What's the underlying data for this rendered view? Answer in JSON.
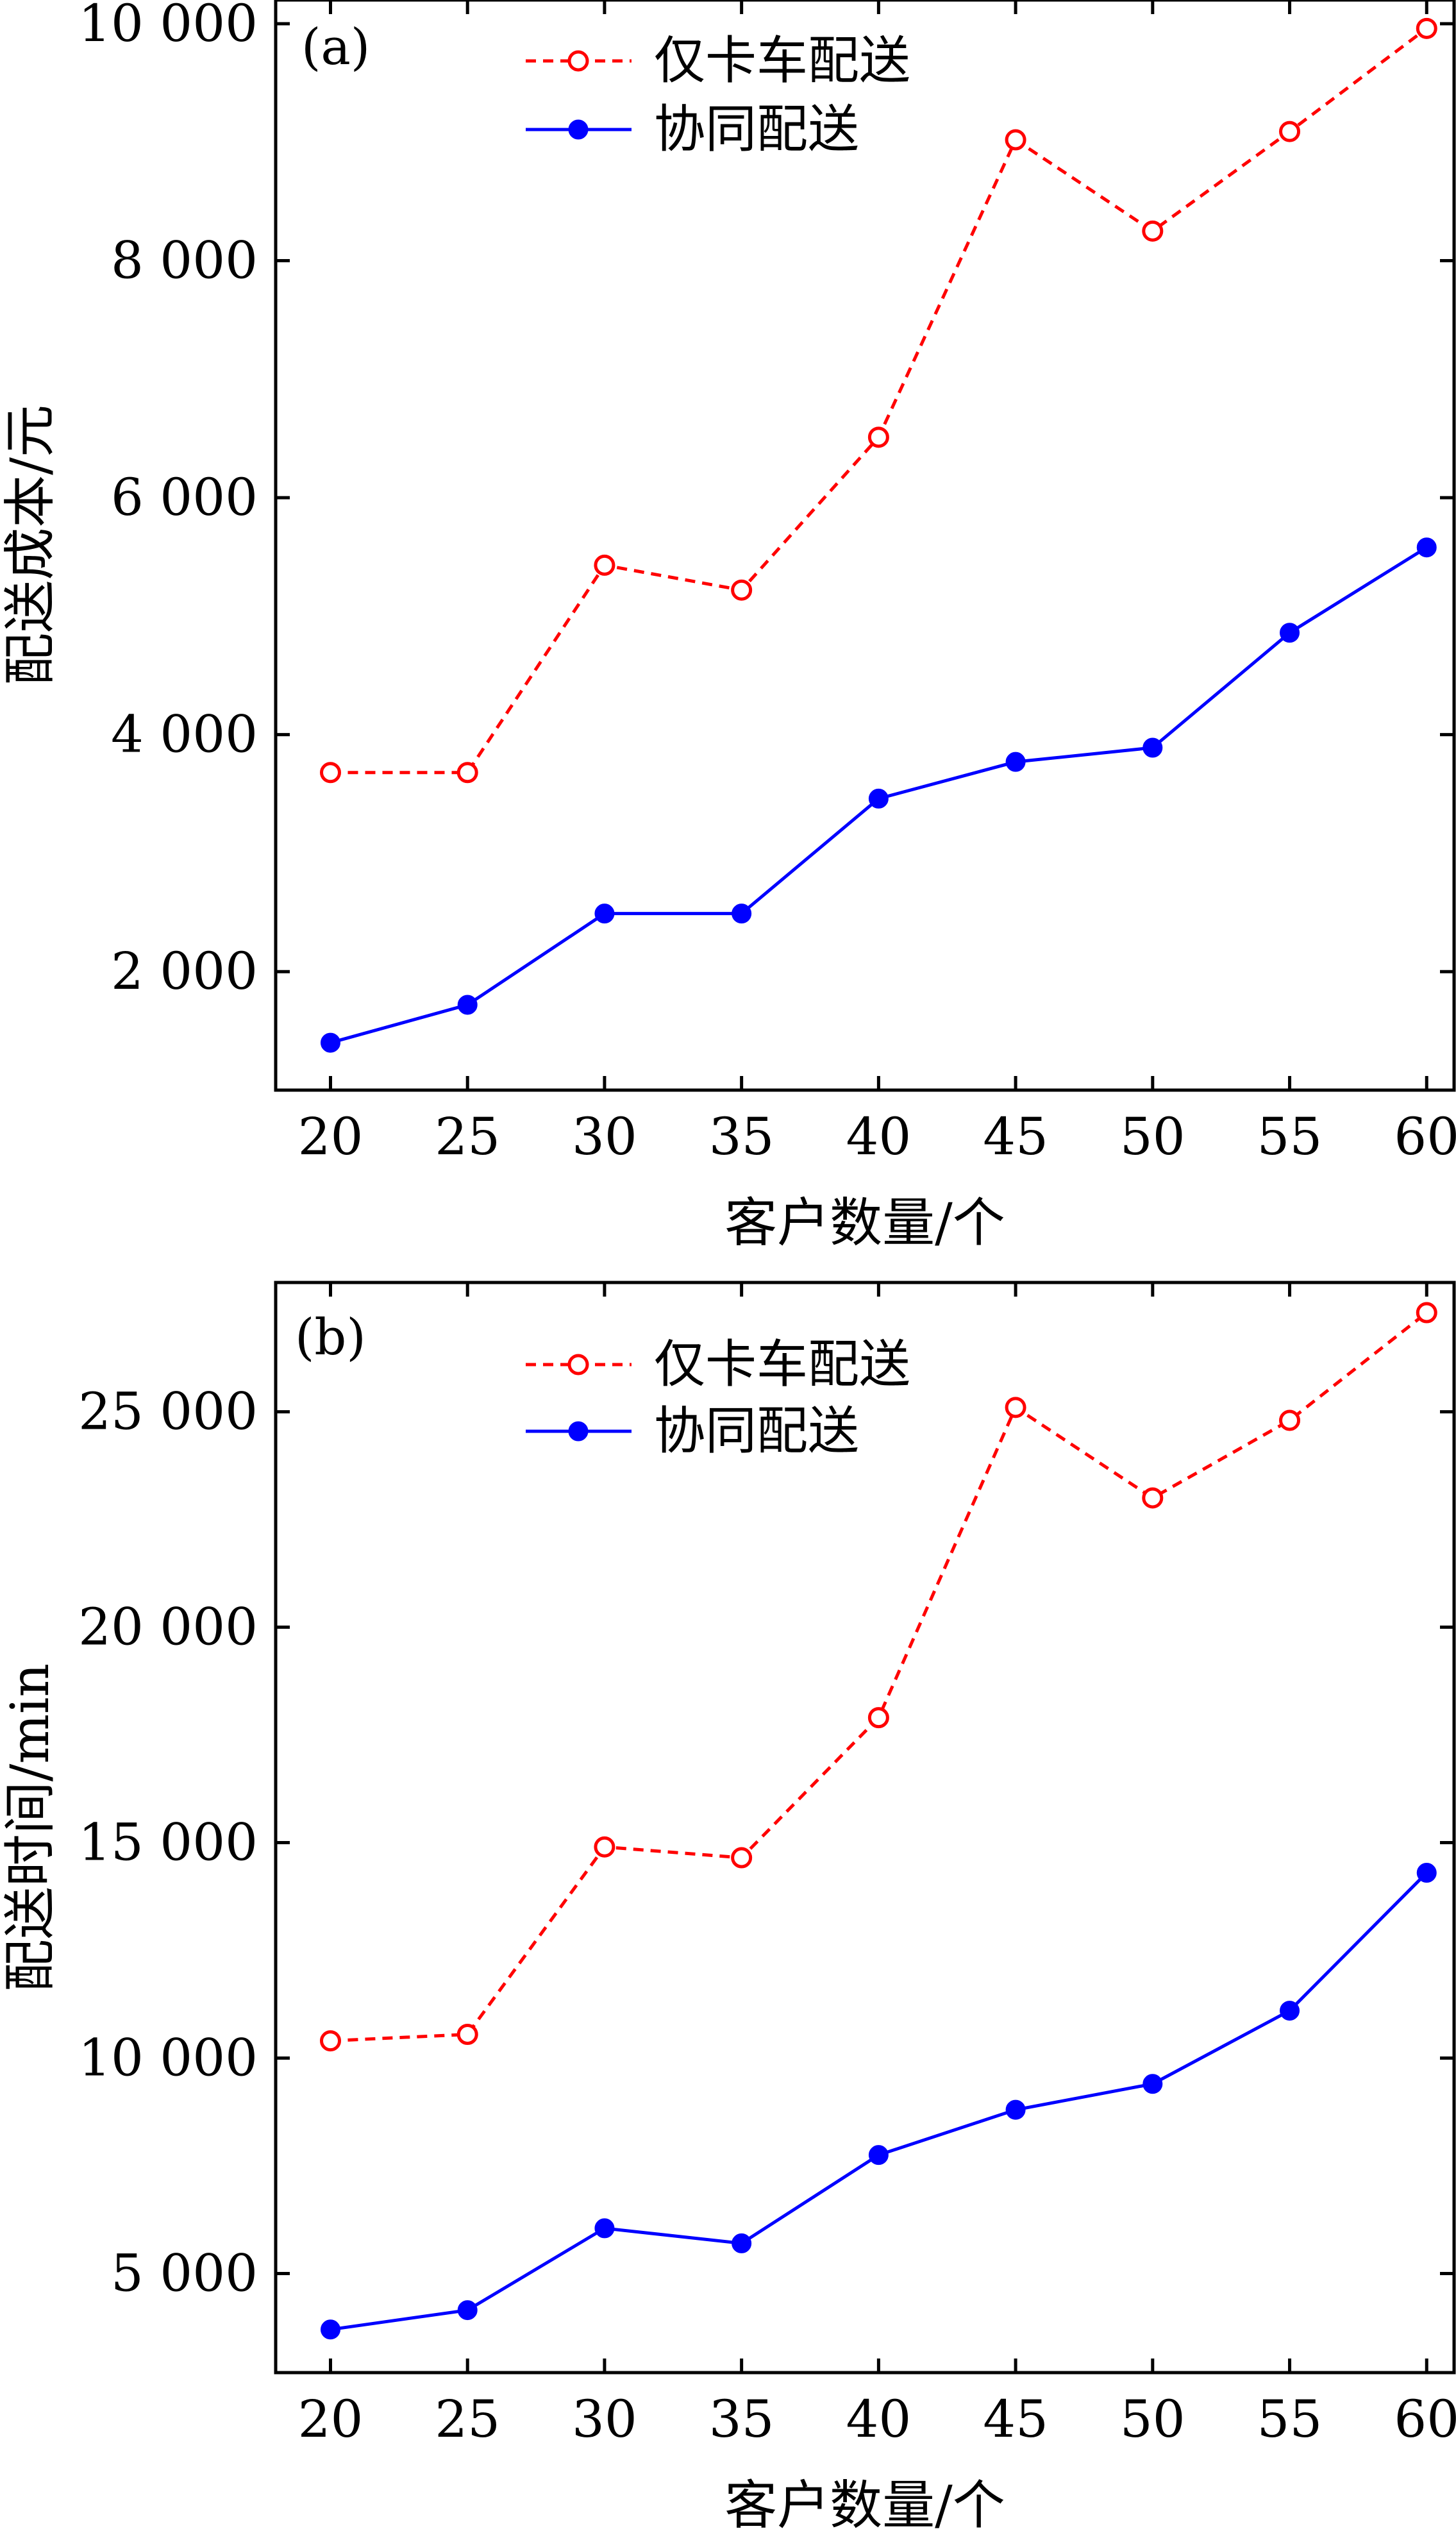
{
  "chart_data": [
    {
      "type": "line",
      "panel_label": "(a)",
      "xlabel": "客户数量/个",
      "ylabel": "配送成本/元",
      "x": [
        20,
        25,
        30,
        35,
        40,
        45,
        50,
        55,
        60
      ],
      "xlim": [
        18,
        61
      ],
      "ylim": [
        1000,
        10200
      ],
      "xticks": [
        20,
        25,
        30,
        35,
        40,
        45,
        50,
        55,
        60
      ],
      "xtick_labels": [
        "20",
        "25",
        "30",
        "35",
        "40",
        "45",
        "50",
        "55",
        "60"
      ],
      "yticks": [
        2000,
        4000,
        6000,
        8000,
        10000
      ],
      "ytick_labels": [
        "2 000",
        "4 000",
        "6 000",
        "8 000",
        "10 000"
      ],
      "legend_position": "top-center",
      "series": [
        {
          "name": "仅卡车配送",
          "color": "#ff0000",
          "line_style": "dashed",
          "marker": "open-circle",
          "values": [
            3680,
            3680,
            5430,
            5220,
            6510,
            9020,
            8250,
            9090,
            9960
          ]
        },
        {
          "name": "协同配送",
          "color": "#0000ff",
          "line_style": "solid",
          "marker": "filled-circle",
          "values": [
            1400,
            1720,
            2490,
            2490,
            3460,
            3770,
            3890,
            4860,
            5580
          ]
        }
      ]
    },
    {
      "type": "line",
      "panel_label": "(b)",
      "xlabel": "客户数量/个",
      "ylabel": "配送时间/min",
      "x": [
        20,
        25,
        30,
        35,
        40,
        45,
        50,
        55,
        60
      ],
      "xlim": [
        18,
        61
      ],
      "ylim": [
        2700,
        28000
      ],
      "xticks": [
        20,
        25,
        30,
        35,
        40,
        45,
        50,
        55,
        60
      ],
      "xtick_labels": [
        "20",
        "25",
        "30",
        "35",
        "40",
        "45",
        "50",
        "55",
        "60"
      ],
      "yticks": [
        5000,
        10000,
        15000,
        20000,
        25000
      ],
      "ytick_labels": [
        "5 000",
        "10 000",
        "15 000",
        "20 000",
        "25 000"
      ],
      "legend_position": "top-center",
      "series": [
        {
          "name": "仅卡车配送",
          "color": "#ff0000",
          "line_style": "dashed",
          "marker": "open-circle",
          "values": [
            10400,
            10550,
            14900,
            14650,
            17900,
            25100,
            23000,
            24800,
            27300
          ]
        },
        {
          "name": "协同配送",
          "color": "#0000ff",
          "line_style": "solid",
          "marker": "filled-circle",
          "values": [
            3700,
            4150,
            6050,
            5700,
            7750,
            8800,
            9400,
            11100,
            14300
          ]
        }
      ]
    }
  ]
}
